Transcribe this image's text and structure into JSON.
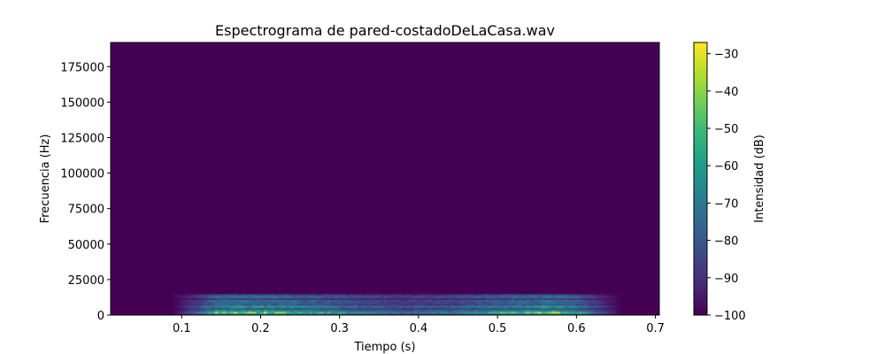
{
  "chart_data": {
    "type": "heatmap",
    "title": "Espectrograma de pared-costadoDeLaCasa.wav",
    "xlabel": "Tiempo (s)",
    "ylabel": "Frecuencia (Hz)",
    "xlim": [
      0.01,
      0.705
    ],
    "ylim": [
      0,
      192000
    ],
    "x_ticks": [
      0.1,
      0.2,
      0.3,
      0.4,
      0.5,
      0.6,
      0.7
    ],
    "x_tick_labels": [
      "0.1",
      "0.2",
      "0.3",
      "0.4",
      "0.5",
      "0.6",
      "0.7"
    ],
    "y_ticks": [
      0,
      25000,
      50000,
      75000,
      100000,
      125000,
      150000,
      175000
    ],
    "y_tick_labels": [
      "0",
      "25000",
      "50000",
      "75000",
      "100000",
      "125000",
      "150000",
      "175000"
    ],
    "background_level_db": -100,
    "signal": {
      "t_start": 0.085,
      "t_end": 0.655,
      "f_max": 15000,
      "bands": [
        {
          "f_center": 1500,
          "level_db": -45
        },
        {
          "f_center": 5500,
          "level_db": -60
        },
        {
          "f_center": 9000,
          "level_db": -70
        },
        {
          "f_center": 12500,
          "level_db": -72
        }
      ]
    },
    "colorbar": {
      "label": "Intensidad (dB)",
      "min": -100,
      "max": -27,
      "ticks": [
        -30,
        -40,
        -50,
        -60,
        -70,
        -80,
        -90,
        -100
      ],
      "tick_labels": [
        "−30",
        "−40",
        "−50",
        "−60",
        "−70",
        "−80",
        "−90",
        "−100"
      ],
      "colormap": "viridis"
    },
    "colors": {
      "viridis": [
        "#440154",
        "#482878",
        "#3e4989",
        "#31688e",
        "#26828e",
        "#1f9e89",
        "#35b779",
        "#6ece58",
        "#b5de2b",
        "#fde725"
      ]
    }
  }
}
